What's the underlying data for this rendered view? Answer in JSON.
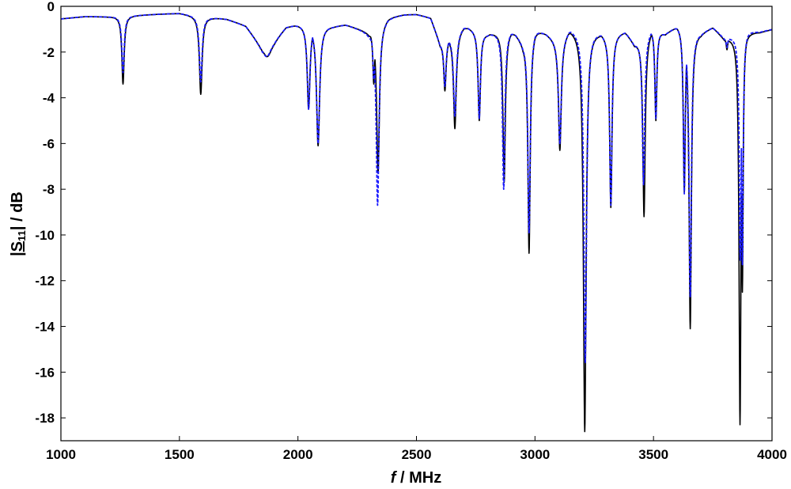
{
  "chart_data": {
    "type": "line",
    "xlabel_italic": "f",
    "xlabel_rest": " / MHz",
    "ylabel_parts": {
      "pre": "|",
      "S": "S",
      "sub": "11",
      "post": "| / dB"
    },
    "xlim": [
      1000,
      4000
    ],
    "ylim": [
      -19,
      0
    ],
    "xticks": [
      1000,
      1500,
      2000,
      2500,
      3000,
      3500,
      4000
    ],
    "yticks": [
      0,
      -2,
      -4,
      -6,
      -8,
      -10,
      -12,
      -14,
      -16,
      -18
    ],
    "grid": false,
    "legend": "none",
    "baseline": [
      [
        1000,
        -0.55
      ],
      [
        1100,
        -0.45
      ],
      [
        1200,
        -0.45
      ],
      [
        1300,
        -0.4
      ],
      [
        1400,
        -0.35
      ],
      [
        1500,
        -0.3
      ],
      [
        1600,
        -0.45
      ],
      [
        1700,
        -0.55
      ],
      [
        1780,
        -0.8
      ],
      [
        1850,
        -1.7
      ],
      [
        1900,
        -1.4
      ],
      [
        1950,
        -0.85
      ],
      [
        2000,
        -0.8
      ],
      [
        2150,
        -0.85
      ],
      [
        2200,
        -0.8
      ],
      [
        2300,
        -1.1
      ],
      [
        2380,
        -0.45
      ],
      [
        2450,
        -0.35
      ],
      [
        2500,
        -0.35
      ],
      [
        2560,
        -0.5
      ],
      [
        2600,
        -1.6
      ],
      [
        2700,
        -0.85
      ],
      [
        2800,
        -1.2
      ],
      [
        2900,
        -1.0
      ],
      [
        2950,
        -1.5
      ],
      [
        3000,
        -0.9
      ],
      [
        3100,
        -1.5
      ],
      [
        3150,
        -0.95
      ],
      [
        3250,
        -1.05
      ],
      [
        3300,
        -1.2
      ],
      [
        3380,
        -1.1
      ],
      [
        3420,
        -1.6
      ],
      [
        3500,
        -0.9
      ],
      [
        3550,
        -1.2
      ],
      [
        3600,
        -0.8
      ],
      [
        3700,
        -1.1
      ],
      [
        3750,
        -0.9
      ],
      [
        3800,
        -1.4
      ],
      [
        3900,
        -1.05
      ],
      [
        3950,
        -1.1
      ],
      [
        4000,
        -1.0
      ]
    ],
    "series": [
      {
        "name": "",
        "color": "#000000",
        "dash": "solid",
        "width": 1.6,
        "dips": [
          [
            1262,
            -3.4,
            6
          ],
          [
            1590,
            -3.85,
            7
          ],
          [
            1870,
            -2.2,
            22
          ],
          [
            2045,
            -4.5,
            7
          ],
          [
            2085,
            -6.1,
            8
          ],
          [
            2320,
            -3.4,
            5
          ],
          [
            2338,
            -7.3,
            7
          ],
          [
            2620,
            -3.7,
            6
          ],
          [
            2662,
            -5.35,
            7
          ],
          [
            2765,
            -5.0,
            6
          ],
          [
            2870,
            -7.7,
            6
          ],
          [
            2975,
            -10.8,
            6
          ],
          [
            3105,
            -6.3,
            7
          ],
          [
            3210,
            -18.6,
            7
          ],
          [
            3320,
            -8.8,
            6
          ],
          [
            3460,
            -9.2,
            6
          ],
          [
            3510,
            -5.0,
            5
          ],
          [
            3630,
            -8.1,
            5
          ],
          [
            3655,
            -14.1,
            6
          ],
          [
            3810,
            -1.9,
            4
          ],
          [
            3865,
            -18.3,
            5
          ],
          [
            3875,
            -12.5,
            4
          ]
        ]
      },
      {
        "name": "",
        "color": "#1a1aff",
        "dash": "dashed",
        "width": 1.8,
        "dips": [
          [
            1262,
            -2.9,
            6
          ],
          [
            1590,
            -3.3,
            7
          ],
          [
            1868,
            -2.2,
            22
          ],
          [
            2045,
            -4.5,
            7
          ],
          [
            2085,
            -6.0,
            8
          ],
          [
            2320,
            -3.2,
            5
          ],
          [
            2336,
            -8.7,
            7
          ],
          [
            2620,
            -3.5,
            6
          ],
          [
            2662,
            -4.8,
            7
          ],
          [
            2765,
            -4.9,
            6
          ],
          [
            2868,
            -8.0,
            6
          ],
          [
            2975,
            -9.9,
            6
          ],
          [
            3105,
            -6.0,
            7
          ],
          [
            3212,
            -15.6,
            7
          ],
          [
            3320,
            -8.7,
            6
          ],
          [
            3458,
            -7.8,
            6
          ],
          [
            3510,
            -4.9,
            5
          ],
          [
            3630,
            -8.2,
            5
          ],
          [
            3655,
            -12.7,
            6
          ],
          [
            3810,
            -1.8,
            4
          ],
          [
            3866,
            -11.1,
            5
          ],
          [
            3875,
            -11.3,
            4
          ]
        ]
      }
    ]
  }
}
